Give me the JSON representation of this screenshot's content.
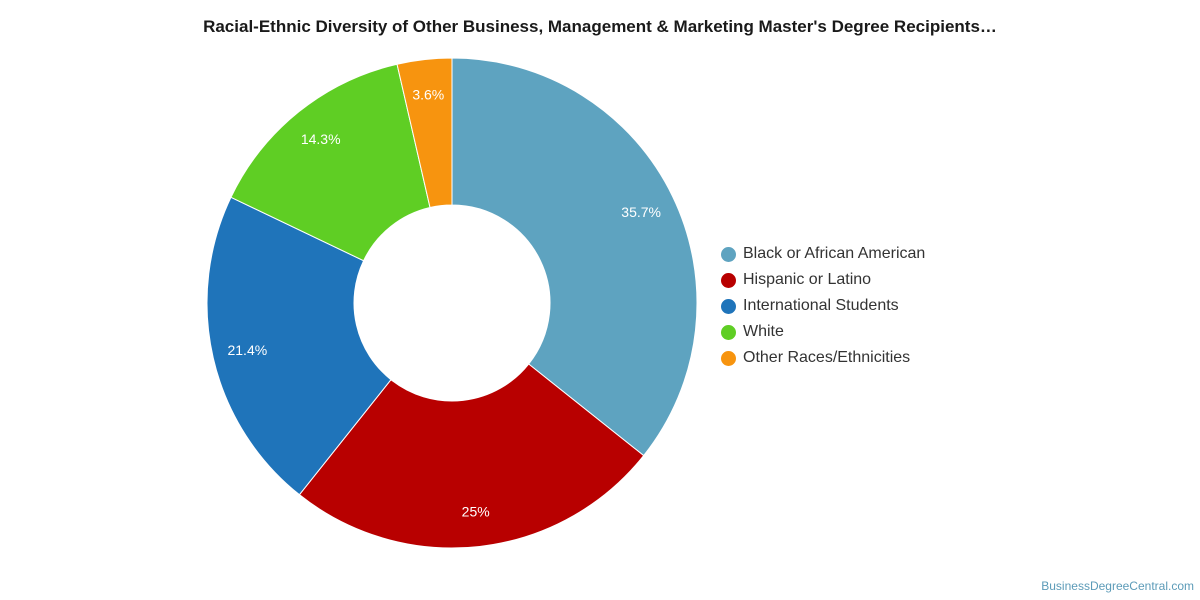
{
  "chart_data": {
    "type": "pie",
    "title": "Racial-Ethnic Diversity of Other Business, Management & Marketing Master's Degree Recipients…",
    "donut": true,
    "legend_position": "right",
    "series": [
      {
        "name": "Black or African American",
        "value": 35.7,
        "label": "35.7%",
        "color": "#5ea3c0"
      },
      {
        "name": "Hispanic or Latino",
        "value": 25,
        "label": "25%",
        "color": "#b80000"
      },
      {
        "name": "International Students",
        "value": 21.4,
        "label": "21.4%",
        "color": "#1f74ba"
      },
      {
        "name": "White",
        "value": 14.3,
        "label": "14.3%",
        "color": "#5fce24"
      },
      {
        "name": "Other Races/Ethnicities",
        "value": 3.6,
        "label": "3.6%",
        "color": "#f7940f"
      }
    ]
  },
  "watermark": "BusinessDegreeCentral.com"
}
